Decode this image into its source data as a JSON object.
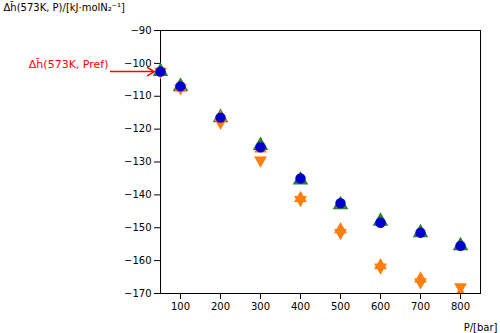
{
  "chart_data": {
    "type": "scatter",
    "x": [
      100,
      200,
      300,
      400,
      500,
      600,
      700,
      800
    ],
    "series": [
      {
        "color": "#2e7d32",
        "marker": "triangle-up",
        "values": [
          -107.0,
          -116.5,
          -125.0,
          -135.5,
          -143.0,
          -148.0,
          -151.5,
          -155.5
        ]
      },
      {
        "color": "#ff7f0e",
        "marker": "triangle-up",
        "values": [
          -107.5,
          -116.5,
          -126.0,
          -141.0,
          -150.5,
          -161.5,
          -165.5,
          -170.0
        ]
      },
      {
        "color": "#ff7f0e",
        "marker": "triangle-down",
        "values": [
          -107.5,
          -118.0,
          -129.5,
          -141.5,
          -151.5,
          -162.0,
          -166.5,
          -168.0
        ]
      },
      {
        "color": "#0000cd",
        "marker": "circle",
        "values": [
          -107.0,
          -116.5,
          -125.5,
          -135.0,
          -142.5,
          -148.5,
          -151.5,
          -155.5
        ]
      }
    ],
    "xlabel": "P/[bar]",
    "ylabel": "Δh̄(573K, P)/[kJ·molN₂⁻¹]",
    "xlim": [
      50,
      850
    ],
    "ylim": [
      -170,
      -90
    ],
    "xticks": [
      100,
      200,
      300,
      400,
      500,
      600,
      700,
      800
    ],
    "yticks": [
      -90,
      -100,
      -110,
      -120,
      -130,
      -140,
      -150,
      -160,
      -170
    ],
    "annotations": [
      {
        "text": "Δh̄(573K, Pref)",
        "x": 50,
        "y": -102.5,
        "color": "#ff0000",
        "markers": [
          {
            "color": "#2e7d32",
            "marker": "triangle-up"
          },
          {
            "color": "#ff7f0e",
            "marker": "triangle-down"
          },
          {
            "color": "#0000cd",
            "marker": "circle"
          }
        ]
      }
    ]
  }
}
